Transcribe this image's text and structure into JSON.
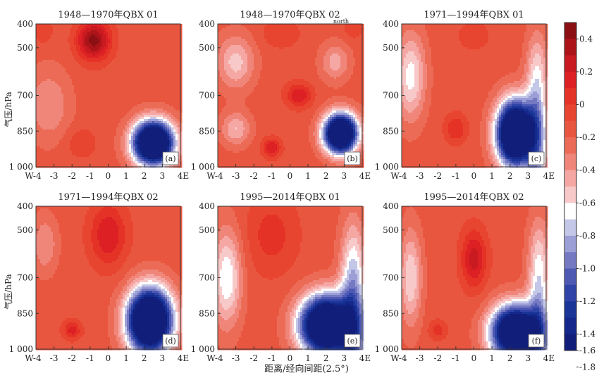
{
  "chart_data": {
    "type": "heatmap",
    "xlabel": "距离/经向间距(2.5°)",
    "ylabel": "气压/hPa",
    "x_ticks": [
      "W-4",
      "-3",
      "-2",
      "-1",
      "0",
      "1",
      "2",
      "3",
      "4E"
    ],
    "x_values": [
      -4,
      -3,
      -2,
      -1,
      0,
      1,
      2,
      3,
      4
    ],
    "y_ticks": [
      "400",
      "500",
      "700",
      "850",
      "1 000"
    ],
    "y_values": [
      400,
      500,
      700,
      850,
      1000
    ],
    "ylim": [
      1000,
      400
    ],
    "colorbar": {
      "ticks": [
        "0.4",
        "0.2",
        "0",
        "-0.2",
        "-0.4",
        "-0.6",
        "-0.8",
        "-1.0",
        "-1.2",
        "-1.4",
        "-1.6",
        "-1.8"
      ],
      "levels": [
        0.5,
        0.4,
        0.3,
        0.2,
        0.1,
        0,
        -0.1,
        -0.2,
        -0.3,
        -0.4,
        -0.5,
        -0.6,
        -0.7,
        -0.8,
        -0.9,
        -1.0,
        -1.1,
        -1.2,
        -1.3,
        -1.4,
        -1.6,
        -1.8,
        -2.0
      ],
      "colors": [
        "#8c0f14",
        "#ad1419",
        "#c81a20",
        "#dc2024",
        "#e53226",
        "#e84530",
        "#e9563f",
        "#ec6b56",
        "#f0867a",
        "#f5a7a4",
        "#f8c9c9",
        "#ffffff",
        "#c4c7e8",
        "#9c9fd6",
        "#7479c2",
        "#4e59b4",
        "#2f44a6",
        "#1a3598",
        "#14288c",
        "#111e7a"
      ]
    },
    "panels": [
      {
        "title": "1948—1970年QBX 01",
        "label": "(a)",
        "note": "",
        "features": [
          {
            "type": "bump",
            "x": -0.8,
            "p": 470,
            "sx": 0.9,
            "sy": 80,
            "v": 0.6
          },
          {
            "type": "bump",
            "x": -3.6,
            "p": 430,
            "sx": 0.5,
            "sy": 50,
            "v": 0.15
          },
          {
            "type": "bump",
            "x": -3.3,
            "p": 740,
            "sx": 1.2,
            "sy": 150,
            "v": -0.25
          },
          {
            "type": "bump",
            "x": -1.5,
            "p": 900,
            "sx": 0.8,
            "sy": 60,
            "v": 0.15
          },
          {
            "type": "bump",
            "x": 2.5,
            "p": 900,
            "sx": 1.1,
            "sy": 90,
            "v": -2.2
          }
        ]
      },
      {
        "title": "1948—1970年QBX 02",
        "label": "(b)",
        "note": "north",
        "features": [
          {
            "type": "bump",
            "x": -3,
            "p": 560,
            "sx": 1.0,
            "sy": 110,
            "v": -0.4
          },
          {
            "type": "bump",
            "x": 2.5,
            "p": 560,
            "sx": 0.8,
            "sy": 80,
            "v": -0.3
          },
          {
            "type": "bump",
            "x": -0.5,
            "p": 440,
            "sx": 1.0,
            "sy": 60,
            "v": 0.15
          },
          {
            "type": "bump",
            "x": 3.5,
            "p": 420,
            "sx": 0.5,
            "sy": 40,
            "v": 0.15
          },
          {
            "type": "bump",
            "x": 0.5,
            "p": 700,
            "sx": 0.7,
            "sy": 50,
            "v": 0.35
          },
          {
            "type": "bump",
            "x": -1,
            "p": 920,
            "sx": 0.5,
            "sy": 40,
            "v": 0.35
          },
          {
            "type": "bump",
            "x": -3,
            "p": 840,
            "sx": 0.8,
            "sy": 70,
            "v": -0.35
          },
          {
            "type": "bump",
            "x": 2.8,
            "p": 860,
            "sx": 0.9,
            "sy": 80,
            "v": -2.2
          }
        ]
      },
      {
        "title": "1971—1994年QBX 01",
        "label": "(c)",
        "note": "",
        "features": [
          {
            "type": "bump",
            "x": -3.5,
            "p": 620,
            "sx": 0.8,
            "sy": 180,
            "v": -0.5
          },
          {
            "type": "bump",
            "x": -1,
            "p": 840,
            "sx": 0.6,
            "sy": 60,
            "v": 0.25
          },
          {
            "type": "bump",
            "x": 0,
            "p": 450,
            "sx": 1.0,
            "sy": 70,
            "v": 0.1
          },
          {
            "type": "ramp",
            "x": 3.5,
            "p": 500,
            "sx": 0.6,
            "sy": 200,
            "v": -0.6
          },
          {
            "type": "bump",
            "x": 2.3,
            "p": 860,
            "sx": 1.0,
            "sy": 130,
            "v": -2.3
          }
        ]
      },
      {
        "title": "1971—1994年QBX 02",
        "label": "(d)",
        "note": "",
        "features": [
          {
            "type": "bump",
            "x": -3.5,
            "p": 560,
            "sx": 0.7,
            "sy": 120,
            "v": -0.25
          },
          {
            "type": "bump",
            "x": 0,
            "p": 520,
            "sx": 1.0,
            "sy": 130,
            "v": 0.35
          },
          {
            "type": "bump",
            "x": -2,
            "p": 920,
            "sx": 0.5,
            "sy": 40,
            "v": 0.3
          },
          {
            "type": "bump",
            "x": 2.3,
            "p": 880,
            "sx": 1.2,
            "sy": 130,
            "v": -2.3
          }
        ]
      },
      {
        "title": "1995—2014年QBX 01",
        "label": "(e)",
        "note": "",
        "features": [
          {
            "type": "bump",
            "x": -3.5,
            "p": 700,
            "sx": 0.8,
            "sy": 200,
            "v": -0.55
          },
          {
            "type": "bump",
            "x": -1,
            "p": 520,
            "sx": 1.4,
            "sy": 160,
            "v": 0.2
          },
          {
            "type": "ramp",
            "x": 3.5,
            "p": 550,
            "sx": 0.7,
            "sy": 260,
            "v": -0.8
          },
          {
            "type": "bump",
            "x": 2.0,
            "p": 900,
            "sx": 1.4,
            "sy": 120,
            "v": -2.2
          }
        ]
      },
      {
        "title": "1995—2014年QBX 02",
        "label": "(f)",
        "note": "",
        "features": [
          {
            "type": "bump",
            "x": -3.5,
            "p": 700,
            "sx": 0.6,
            "sy": 200,
            "v": -0.45
          },
          {
            "type": "bump",
            "x": 0,
            "p": 620,
            "sx": 0.7,
            "sy": 120,
            "v": 0.4
          },
          {
            "type": "bump",
            "x": -2,
            "p": 920,
            "sx": 0.5,
            "sy": 40,
            "v": 0.2
          },
          {
            "type": "ramp",
            "x": 3.6,
            "p": 520,
            "sx": 0.6,
            "sy": 220,
            "v": -0.6
          },
          {
            "type": "bump",
            "x": 2.3,
            "p": 930,
            "sx": 1.3,
            "sy": 110,
            "v": -2.1
          }
        ]
      }
    ]
  }
}
